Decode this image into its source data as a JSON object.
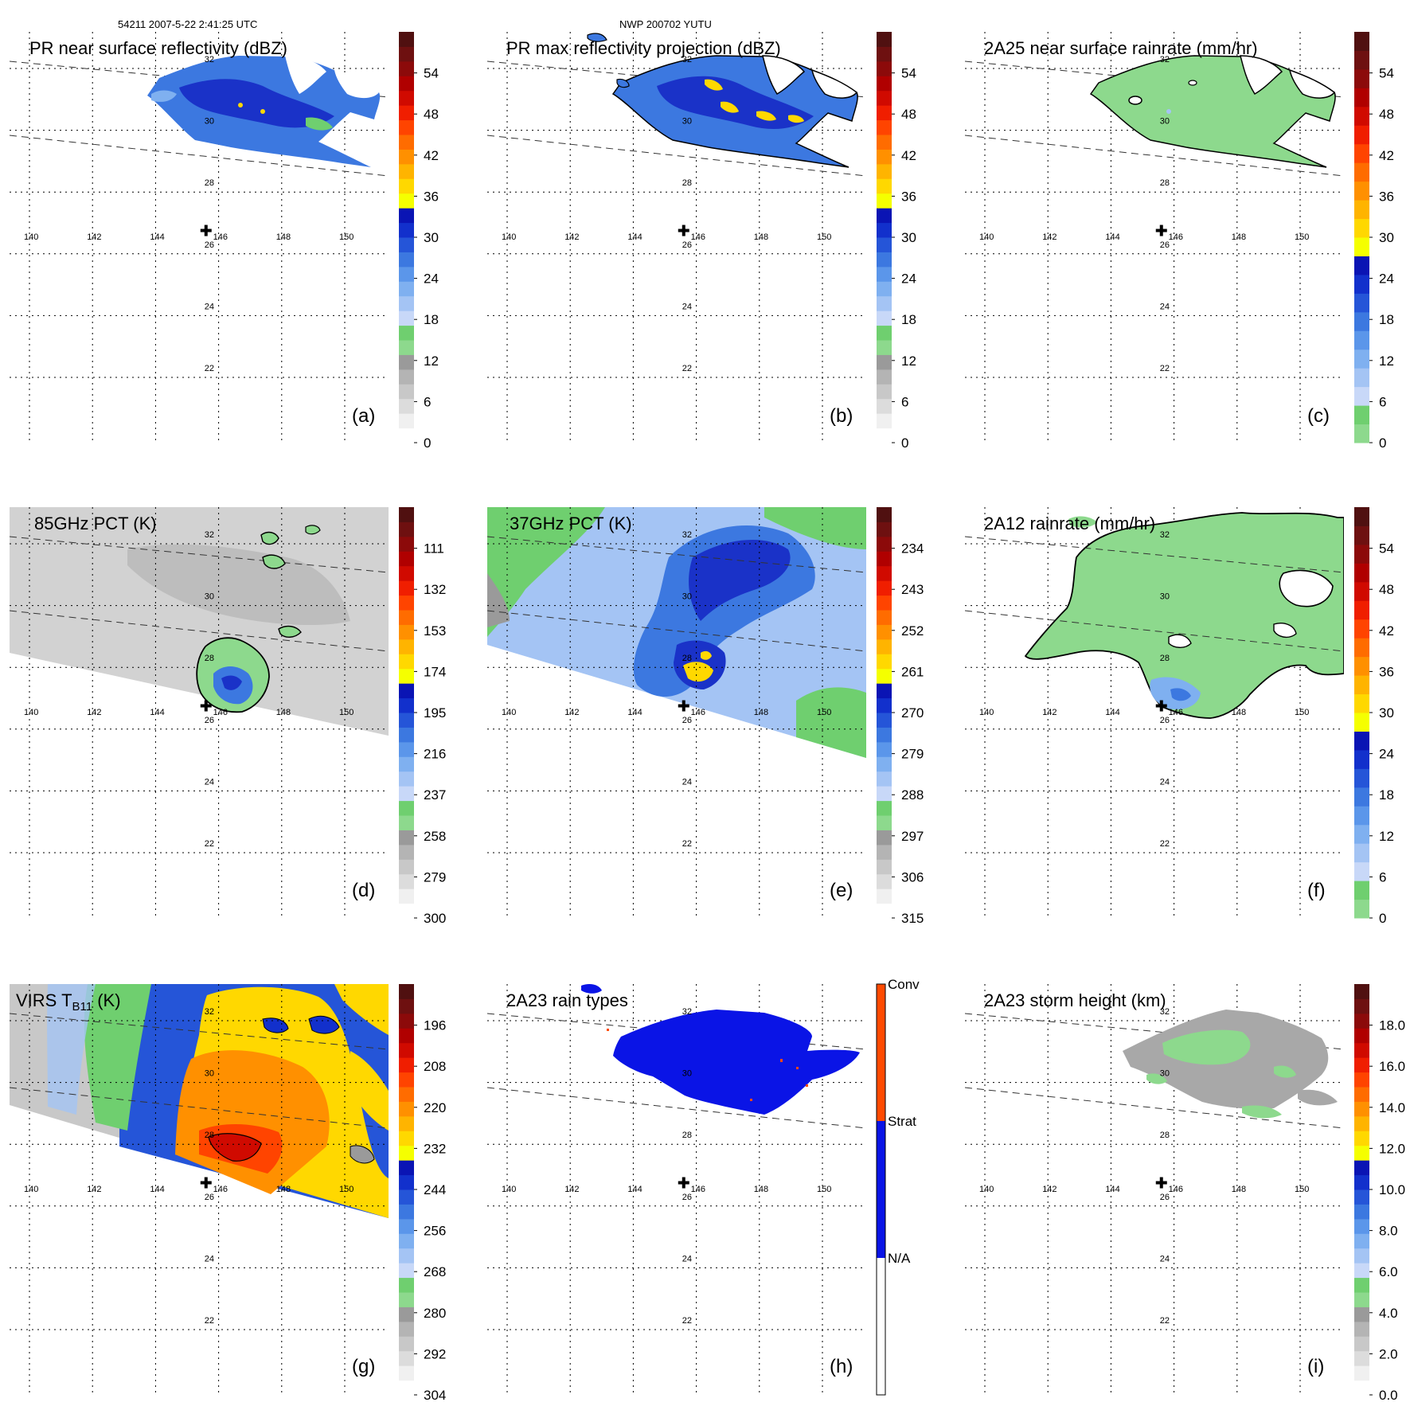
{
  "header": {
    "orbit_time": "54211 2007-5-22 2:41:25 UTC",
    "storm": "NWP 200702 YUTU"
  },
  "lon_labels": [
    "140",
    "142",
    "144",
    "146",
    "148",
    "150"
  ],
  "lat_labels": [
    "32",
    "30",
    "28",
    "26",
    "24",
    "22"
  ],
  "center_marker": {
    "lon": 145.6,
    "lat": 26.6,
    "symbol": "✚"
  },
  "panels": [
    {
      "id": "a",
      "title": "PR near surface reflectivity (dBZ)",
      "letter": "(a)",
      "colorbar": "reflectivity",
      "field": "pr_sfc"
    },
    {
      "id": "b",
      "title": "PR max reflectivity projection (dBZ)",
      "letter": "(b)",
      "colorbar": "reflectivity",
      "field": "pr_max"
    },
    {
      "id": "c",
      "title": "2A25 near surface rainrate (mm/hr)",
      "letter": "(c)",
      "colorbar": "rainrate",
      "field": "rain_2a25"
    },
    {
      "id": "d",
      "title": "85GHz PCT (K)",
      "letter": "(d)",
      "colorbar": "pct85",
      "field": "pct85"
    },
    {
      "id": "e",
      "title": "37GHz PCT (K)",
      "letter": "(e)",
      "colorbar": "pct37",
      "field": "pct37"
    },
    {
      "id": "f",
      "title": "2A12 rainrate (mm/hr)",
      "letter": "(f)",
      "colorbar": "rainrate",
      "field": "rain_2a12"
    },
    {
      "id": "g",
      "title_main": "VIRS T",
      "title_sub": "B11",
      "title_end": " (K)",
      "letter": "(g)",
      "colorbar": "virs",
      "field": "virs"
    },
    {
      "id": "h",
      "title": "2A23 rain types",
      "letter": "(h)",
      "colorbar": "raintype",
      "field": "raintype"
    },
    {
      "id": "i",
      "title": "2A23 storm height (km)",
      "letter": "(i)",
      "colorbar": "height",
      "field": "height"
    }
  ],
  "colorbars": {
    "reflectivity": {
      "labels": [
        "0",
        "6",
        "12",
        "18",
        "24",
        "30",
        "36",
        "42",
        "48",
        "54"
      ],
      "colors": [
        "#ffffff",
        "#f0f0f0",
        "#dcdcdc",
        "#c8c8c8",
        "#b4b4b4",
        "#9a9a9a",
        "#8dd98d",
        "#6fcf6f",
        "#c8d8f8",
        "#a4c4f4",
        "#7fb0f0",
        "#5b96ea",
        "#3c78e0",
        "#2555d8",
        "#1230cc",
        "#0a14b4",
        "#f5ff00",
        "#ffd800",
        "#ffb400",
        "#ff9000",
        "#ff6c00",
        "#ff4400",
        "#f01e00",
        "#d00a00",
        "#b00000",
        "#8c0a0a",
        "#6e1010",
        "#501010"
      ]
    },
    "rainrate": {
      "labels": [
        "0",
        "6",
        "12",
        "18",
        "24",
        "30",
        "36",
        "42",
        "48",
        "54"
      ],
      "colors": [
        "#8dd98d",
        "#6fcf6f",
        "#c8d8f8",
        "#a4c4f4",
        "#7fb0f0",
        "#5b96ea",
        "#3c78e0",
        "#2555d8",
        "#1230cc",
        "#0a14b4",
        "#f5ff00",
        "#ffd800",
        "#ffb400",
        "#ff9000",
        "#ff6c00",
        "#ff4400",
        "#f01e00",
        "#d00a00",
        "#b00000",
        "#8c0a0a",
        "#6e1010",
        "#501010"
      ]
    },
    "pct85": {
      "labels": [
        "300",
        "279",
        "258",
        "237",
        "216",
        "195",
        "174",
        "153",
        "132",
        "111"
      ],
      "colors": [
        "#ffffff",
        "#f0f0f0",
        "#dcdcdc",
        "#c8c8c8",
        "#b4b4b4",
        "#9a9a9a",
        "#8dd98d",
        "#6fcf6f",
        "#c8d8f8",
        "#a4c4f4",
        "#7fb0f0",
        "#5b96ea",
        "#3c78e0",
        "#2555d8",
        "#1230cc",
        "#0a14b4",
        "#f5ff00",
        "#ffd800",
        "#ffb400",
        "#ff9000",
        "#ff6c00",
        "#ff4400",
        "#f01e00",
        "#d00a00",
        "#b00000",
        "#8c0a0a",
        "#6e1010",
        "#501010"
      ]
    },
    "pct37": {
      "labels": [
        "315",
        "306",
        "297",
        "288",
        "279",
        "270",
        "261",
        "252",
        "243",
        "234"
      ],
      "colors": [
        "#ffffff",
        "#f0f0f0",
        "#dcdcdc",
        "#c8c8c8",
        "#b4b4b4",
        "#9a9a9a",
        "#8dd98d",
        "#6fcf6f",
        "#c8d8f8",
        "#a4c4f4",
        "#7fb0f0",
        "#5b96ea",
        "#3c78e0",
        "#2555d8",
        "#1230cc",
        "#0a14b4",
        "#f5ff00",
        "#ffd800",
        "#ffb400",
        "#ff9000",
        "#ff6c00",
        "#ff4400",
        "#f01e00",
        "#d00a00",
        "#b00000",
        "#8c0a0a",
        "#6e1010",
        "#501010"
      ]
    },
    "virs": {
      "labels": [
        "304",
        "292",
        "280",
        "268",
        "256",
        "244",
        "232",
        "220",
        "208",
        "196"
      ],
      "colors": [
        "#ffffff",
        "#f0f0f0",
        "#dcdcdc",
        "#c8c8c8",
        "#b4b4b4",
        "#9a9a9a",
        "#8dd98d",
        "#6fcf6f",
        "#c8d8f8",
        "#a4c4f4",
        "#7fb0f0",
        "#5b96ea",
        "#3c78e0",
        "#2555d8",
        "#1230cc",
        "#0a14b4",
        "#f5ff00",
        "#ffd800",
        "#ffb400",
        "#ff9000",
        "#ff6c00",
        "#ff4400",
        "#f01e00",
        "#d00a00",
        "#b00000",
        "#8c0a0a",
        "#6e1010",
        "#501010"
      ]
    },
    "height": {
      "labels": [
        "0.0",
        "2.0",
        "4.0",
        "6.0",
        "8.0",
        "10.0",
        "12.0",
        "14.0",
        "16.0",
        "18.0"
      ],
      "colors": [
        "#ffffff",
        "#f0f0f0",
        "#dcdcdc",
        "#c8c8c8",
        "#b4b4b4",
        "#9a9a9a",
        "#8dd98d",
        "#6fcf6f",
        "#c8d8f8",
        "#a4c4f4",
        "#7fb0f0",
        "#5b96ea",
        "#3c78e0",
        "#2555d8",
        "#1230cc",
        "#0a14b4",
        "#f5ff00",
        "#ffd800",
        "#ffb400",
        "#ff9000",
        "#ff6c00",
        "#ff4400",
        "#f01e00",
        "#d00a00",
        "#b00000",
        "#8c0a0a",
        "#6e1010",
        "#501010"
      ]
    },
    "raintype": {
      "categorical": true,
      "labels": [
        "N/A",
        "Strat",
        "Conv"
      ],
      "colors": [
        "#ffffff",
        "#0a14e6",
        "#ff4a00"
      ]
    }
  }
}
